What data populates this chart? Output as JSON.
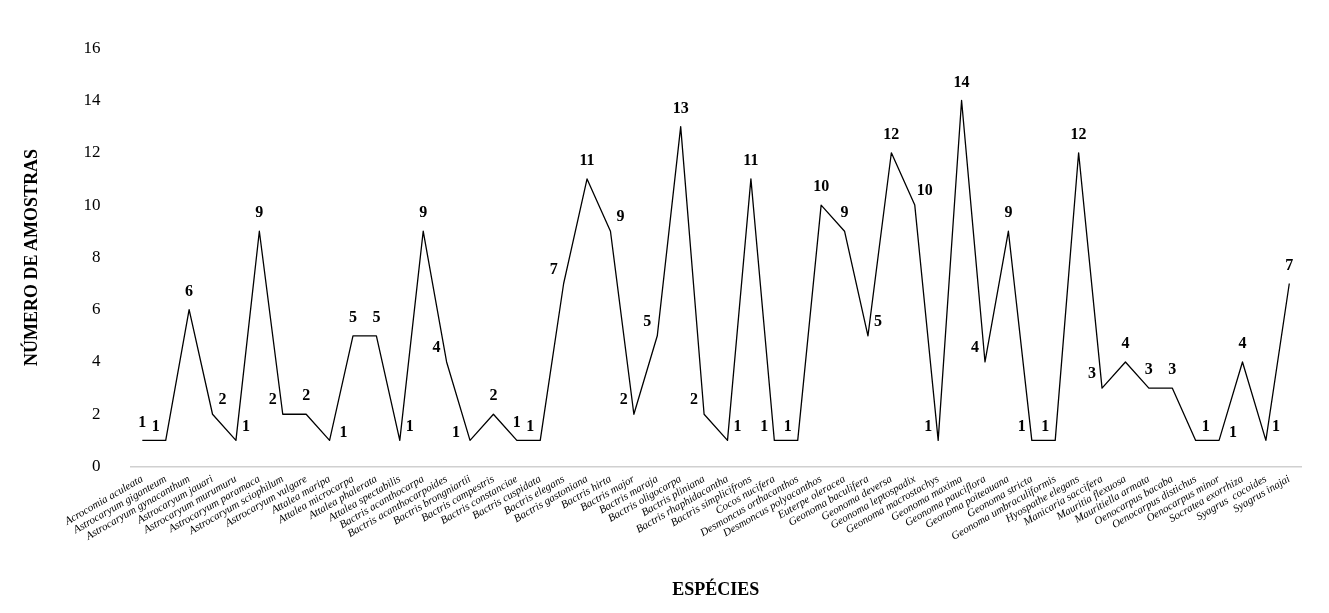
{
  "chart_data": {
    "type": "line",
    "xlabel": "ESPÉCIES",
    "ylabel": "NÚMERO DE AMOSTRAS",
    "categories": [
      "Acrocomia aculeata",
      "Astrocaryum giganteum",
      "Astrocaryum gynacanthum",
      "Astrocaryum jauari",
      "Astrocaryum murumuru",
      "Astrocaryum paramaca",
      "Astrocaryum sciophilum",
      "Astrocaryum vulgare",
      "Attalea maripa",
      "Attalea microcarpa",
      "Attalea phalerata",
      "Attalea spectabilis",
      "Bactris acanthocarpa",
      "Bactris acanthocarpoides",
      "Bactris brongniartii",
      "Bactris campestris",
      "Bactris constanciae",
      "Bactris cuspidata",
      "Bactris elegans",
      "Bactris gastoniana",
      "Bactris hirta",
      "Bactris major",
      "Bactris maraja",
      "Bactris oligocarpa",
      "Bactris pliniana",
      "Bactris rhaphidacantha",
      "Bactris simplicifrons",
      "Cocos nucifera",
      "Desmoncus orthacanthos",
      "Desmoncus polyacanthos",
      "Euterpe oleracea",
      "Geonoma baculifera",
      "Geonoma deversa",
      "Geonoma leptospadix",
      "Geonoma macrostachys",
      "Geonoma maxima",
      "Geonoma pauciflora",
      "Geonoma poiteauana",
      "Geonoma stricta",
      "Geonoma umbraculiformis",
      "Hyospathe elegans",
      "Manicaria saccifera",
      "Mauritia flexuosa",
      "Mauritiella armata",
      "Oenocarpus bacaba",
      "Oenocarpus distichus",
      "Oenocarpus minor",
      "Socratea exorrhiza",
      "Syagrus  cocoides",
      "Syagrus inajai"
    ],
    "series": [
      {
        "color": "#000000",
        "values": [
          1,
          1,
          6,
          2,
          1,
          9,
          2,
          2,
          1,
          5,
          5,
          1,
          9,
          4,
          1,
          2,
          1,
          1,
          7,
          11,
          9,
          2,
          5,
          13,
          2,
          1,
          11,
          1,
          1,
          10,
          9,
          5,
          12,
          10,
          1,
          14,
          4,
          9,
          1,
          1,
          12,
          3,
          4,
          3,
          3,
          1,
          1,
          4,
          1,
          7
        ]
      }
    ],
    "ylim": [
      0,
      16
    ],
    "yticks": [
      0,
      2,
      4,
      6,
      8,
      10,
      12,
      14,
      16
    ],
    "data_labels": true,
    "grid": false,
    "legend": false,
    "marker": "none",
    "line_style": "solid"
  }
}
